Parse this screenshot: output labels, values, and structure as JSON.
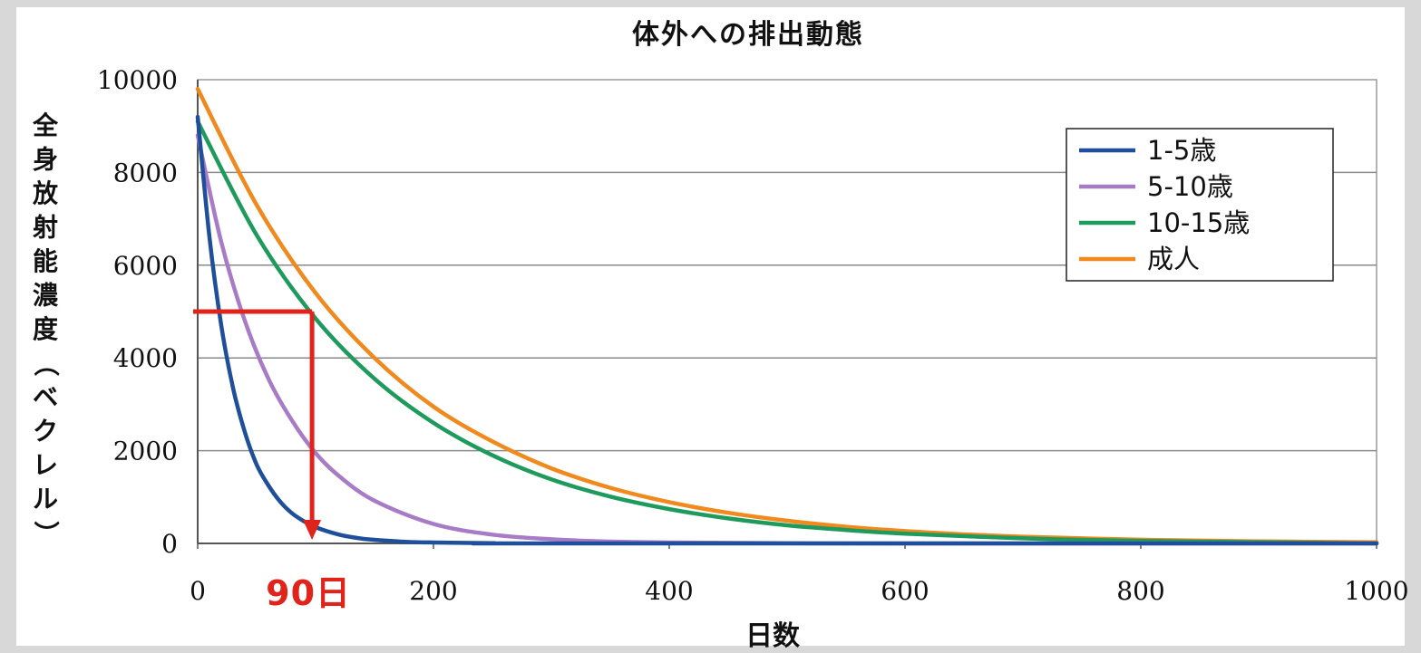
{
  "chart_data": {
    "type": "line",
    "title": "体外への排出動態",
    "xlabel": "日数",
    "ylabel": "全身放射能濃度（ベクレル）",
    "xlim": [
      0,
      1000
    ],
    "ylim": [
      0,
      10000
    ],
    "x_ticks": [
      0,
      200,
      400,
      600,
      800,
      1000
    ],
    "y_ticks": [
      0,
      2000,
      4000,
      6000,
      8000,
      10000
    ],
    "grid": "horizontal",
    "legend_position": "top-right",
    "series": [
      {
        "name": "1-5歳",
        "color": "#1f4e9a",
        "x": [
          0,
          10,
          20,
          30,
          40,
          50,
          60,
          70,
          80,
          90,
          100,
          120,
          140,
          160,
          180,
          200,
          250,
          300,
          1000
        ],
        "y": [
          9200,
          6600,
          4700,
          3350,
          2400,
          1700,
          1250,
          900,
          650,
          480,
          350,
          190,
          100,
          60,
          30,
          20,
          5,
          0,
          0
        ]
      },
      {
        "name": "5-10歳",
        "color": "#a77bc6",
        "x": [
          0,
          20,
          40,
          60,
          80,
          100,
          120,
          150,
          200,
          250,
          300,
          350,
          400,
          500,
          600,
          1000
        ],
        "y": [
          8800,
          6500,
          4800,
          3550,
          2650,
          1950,
          1450,
          920,
          420,
          190,
          90,
          40,
          20,
          5,
          0,
          0
        ]
      },
      {
        "name": "10-15歳",
        "color": "#1e9a5c",
        "x": [
          0,
          50,
          100,
          150,
          200,
          250,
          300,
          350,
          400,
          450,
          500,
          550,
          600,
          700,
          800,
          1000
        ],
        "y": [
          9100,
          6650,
          4850,
          3550,
          2600,
          1900,
          1380,
          1010,
          740,
          540,
          390,
          290,
          210,
          110,
          55,
          0
        ]
      },
      {
        "name": "成人",
        "color": "#f08a1e",
        "x": [
          0,
          50,
          100,
          150,
          200,
          250,
          300,
          350,
          400,
          450,
          500,
          550,
          600,
          650,
          700,
          800,
          900,
          1000
        ],
        "y": [
          9800,
          7300,
          5400,
          4000,
          2950,
          2200,
          1620,
          1200,
          890,
          660,
          490,
          360,
          265,
          195,
          145,
          80,
          45,
          25
        ]
      }
    ],
    "annotation": {
      "text": "90日",
      "x": 97,
      "y": 5000,
      "color": "#e0241b"
    }
  }
}
